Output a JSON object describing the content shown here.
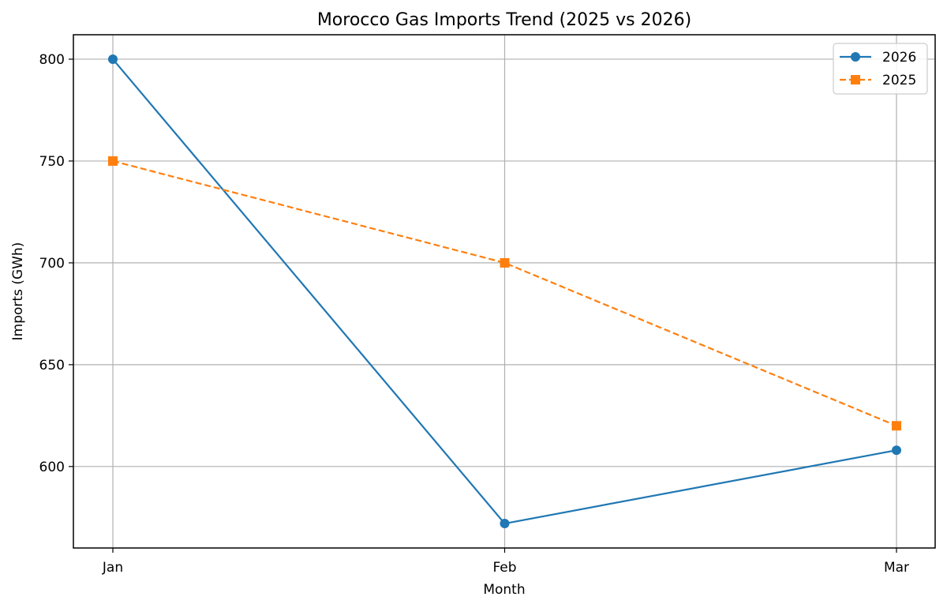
{
  "chart_data": {
    "type": "line",
    "title": "Morocco Gas Imports Trend (2025 vs 2026)",
    "xlabel": "Month",
    "ylabel": "Imports (GWh)",
    "categories": [
      "Jan",
      "Feb",
      "Mar"
    ],
    "ylim": [
      560,
      812
    ],
    "yticks": [
      600,
      650,
      700,
      750,
      800
    ],
    "grid": true,
    "legend_position": "top-right",
    "series": [
      {
        "name": "2026",
        "values": [
          800,
          572,
          608
        ],
        "color": "#1f77b4",
        "line_style": "solid",
        "marker": "circle"
      },
      {
        "name": "2025",
        "values": [
          750,
          700,
          620
        ],
        "color": "#ff7f0e",
        "line_style": "dashed",
        "marker": "square"
      }
    ]
  }
}
